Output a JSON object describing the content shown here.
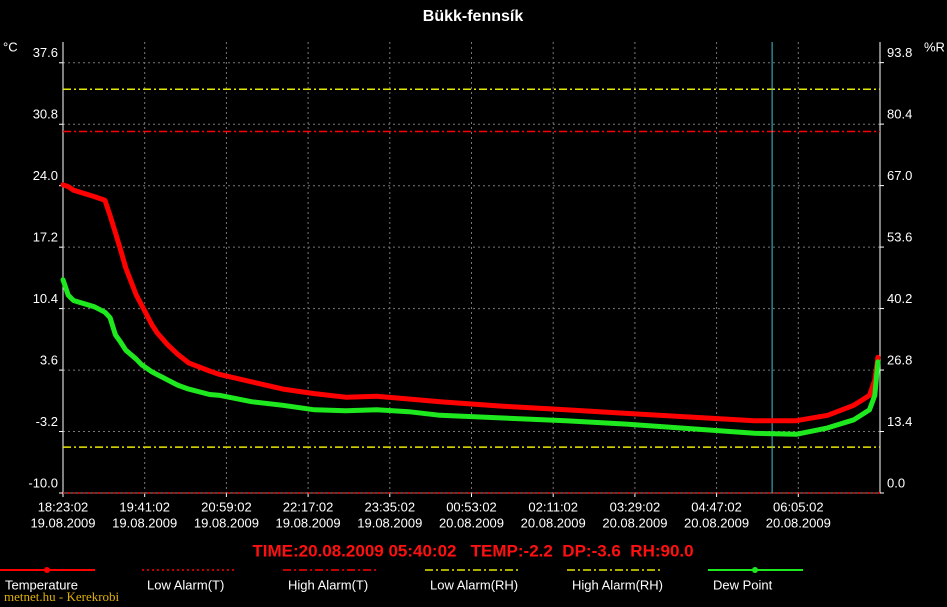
{
  "chart_data": {
    "type": "line",
    "title": "Bükk-fennsík",
    "y_unit_label": "°C",
    "y2_unit_label": "%R",
    "x": [
      0,
      5,
      10,
      30,
      40,
      45,
      50,
      55,
      60,
      70,
      75,
      85,
      90,
      100,
      110,
      120,
      140,
      150,
      180,
      210,
      240,
      270,
      300,
      330,
      360,
      420,
      480,
      540,
      600,
      660,
      700,
      730,
      755,
      770,
      775,
      778
    ],
    "series": [
      {
        "name": "Temperature",
        "color": "#ff0000",
        "axis": "y",
        "values": [
          24.1,
          23.9,
          23.5,
          22.8,
          22.4,
          20.7,
          18.8,
          16.9,
          14.9,
          11.9,
          10.8,
          8.6,
          7.7,
          6.4,
          5.3,
          4.4,
          3.5,
          3.1,
          2.3,
          1.5,
          1.0,
          0.6,
          0.7,
          0.4,
          0.1,
          -0.4,
          -0.8,
          -1.2,
          -1.6,
          -2.0,
          -2.0,
          -1.4,
          -0.3,
          0.8,
          2.5,
          5.0
        ]
      },
      {
        "name": "Dew Point",
        "color": "#1ee81e",
        "axis": "y",
        "values": [
          13.6,
          11.9,
          11.3,
          10.6,
          10.0,
          9.4,
          7.5,
          6.7,
          5.8,
          4.8,
          4.2,
          3.4,
          3.1,
          2.5,
          1.9,
          1.5,
          0.9,
          0.8,
          0.1,
          -0.3,
          -0.8,
          -0.9,
          -0.8,
          -1.0,
          -1.4,
          -1.7,
          -2.0,
          -2.4,
          -2.9,
          -3.4,
          -3.5,
          -2.8,
          -1.9,
          -0.8,
          0.8,
          4.5
        ]
      }
    ],
    "alarms": [
      {
        "name": "Low Alarm(T)",
        "color": "#ff0000",
        "axis": "y",
        "value": -10,
        "dash": "2 3"
      },
      {
        "name": "High Alarm(T)",
        "color": "#ff0000",
        "axis": "y",
        "value": 30,
        "dash": "8 3 2 3"
      },
      {
        "name": "Low Alarm(RH)",
        "color": "#e8e800",
        "axis": "y2",
        "value": 10,
        "dash": "8 3 2 3"
      },
      {
        "name": "High Alarm(RH)",
        "color": "#e8e800",
        "axis": "y2",
        "value": 88,
        "dash": "8 3 2 3"
      }
    ],
    "xlim": [
      0,
      780
    ],
    "xticks": [
      {
        "value": 0,
        "label": "18:23:02"
      },
      {
        "value": 78,
        "label": "19:41:02"
      },
      {
        "value": 156,
        "label": "20:59:02"
      },
      {
        "value": 234,
        "label": "22:17:02"
      },
      {
        "value": 312,
        "label": "23:35:02"
      },
      {
        "value": 390,
        "label": "00:53:02"
      },
      {
        "value": 468,
        "label": "02:11:02"
      },
      {
        "value": 546,
        "label": "03:29:02"
      },
      {
        "value": 624,
        "label": "04:47:02"
      },
      {
        "value": 702,
        "label": "06:05:02"
      }
    ],
    "xtick_dates": [
      "19.08.2009",
      "19.08.2009",
      "19.08.2009",
      "19.08.2009",
      "19.08.2009",
      "20.08.2009",
      "20.08.2009",
      "20.08.2009",
      "20.08.2009",
      "20.08.2009"
    ],
    "ylim": [
      -10,
      39.9
    ],
    "yticks": [
      {
        "value": -10,
        "label": "-10.0"
      },
      -3.2,
      3.6,
      10.4,
      17.2,
      {
        "value": 24,
        "label": "24.0"
      },
      30.8,
      37.6
    ],
    "y2lim": [
      0,
      98.3
    ],
    "y2ticks": [
      {
        "value": 0,
        "label": "0.0"
      },
      13.4,
      26.8,
      40.2,
      53.6,
      {
        "value": 67,
        "label": "67.0"
      },
      80.4,
      93.8
    ],
    "cursor": 677,
    "cursor_color": "#40c0d0",
    "status": "TIME:20.08.2009 05:40:02   TEMP:-2.2  DP:-3.6  RH:90.0",
    "grid": true,
    "watermark": "metnet.hu - Kerekrobi"
  }
}
